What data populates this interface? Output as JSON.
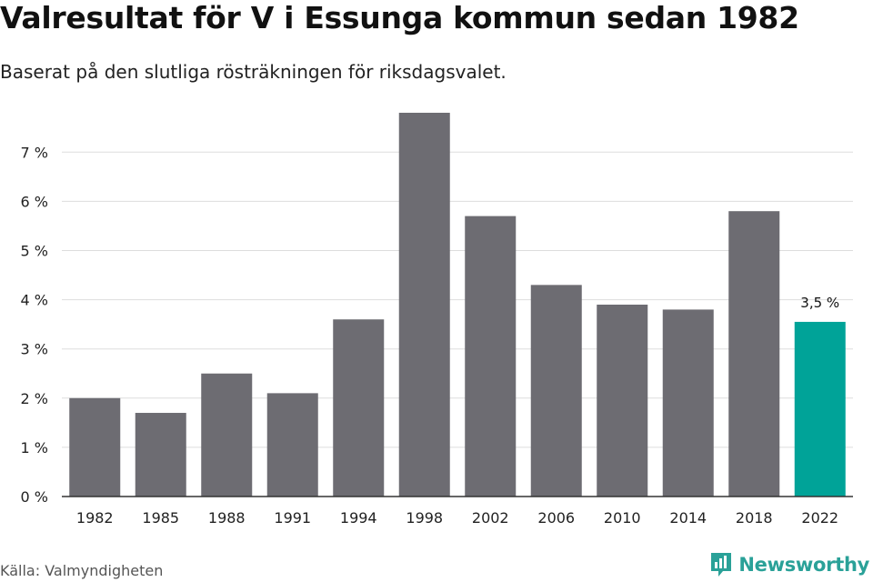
{
  "header": {
    "title": "Valresultat för V i Essunga kommun sedan 1982",
    "subtitle": "Baserat på den slutliga rösträkningen för riksdagsvalet."
  },
  "footer": {
    "source": "Källa: Valmyndigheten",
    "brand": "Newsworthy"
  },
  "colors": {
    "bar": "#6d6c72",
    "highlight": "#00a398",
    "grid": "#dddddd",
    "axis": "#333333"
  },
  "chart_data": {
    "type": "bar",
    "title": "Valresultat för V i Essunga kommun sedan 1982",
    "subtitle": "Baserat på den slutliga rösträkningen för riksdagsvalet.",
    "xlabel": "",
    "ylabel": "",
    "categories": [
      "1982",
      "1985",
      "1988",
      "1991",
      "1994",
      "1998",
      "2002",
      "2006",
      "2010",
      "2014",
      "2018",
      "2022"
    ],
    "values": [
      2.0,
      1.7,
      2.5,
      2.1,
      3.6,
      7.8,
      5.7,
      4.3,
      3.9,
      3.8,
      5.8,
      3.55
    ],
    "highlight_index": 11,
    "highlight_label": "3,5 %",
    "ylim": [
      0,
      7.8
    ],
    "yticks": [
      0,
      1,
      2,
      3,
      4,
      5,
      6,
      7
    ],
    "ytick_labels": [
      "0 %",
      "1 %",
      "2 %",
      "3 %",
      "4 %",
      "5 %",
      "6 %",
      "7 %"
    ],
    "grid": true
  }
}
